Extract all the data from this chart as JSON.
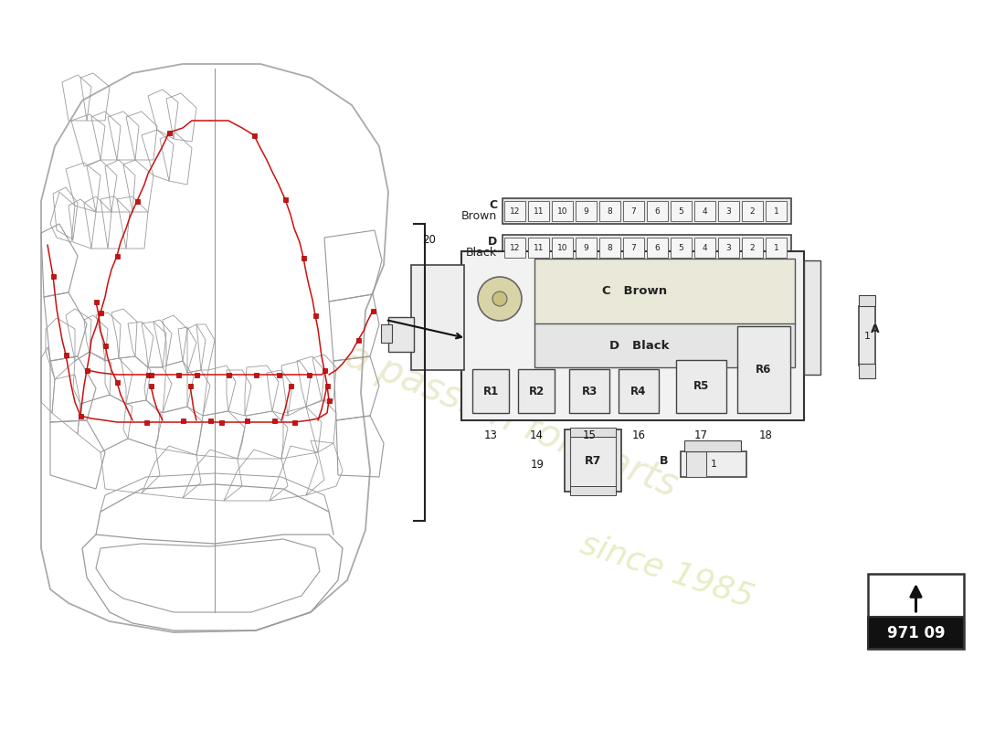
{
  "bg_color": "#ffffff",
  "car_outline_color": "#aaaaaa",
  "car_inner_color": "#999999",
  "wiring_color": "#cc1111",
  "diagram_line_color": "#333333",
  "fuse_slot_fill": "#f5f5f5",
  "fuse_outer_fill": "#e8e8e8",
  "relay_fill": "#eeeeee",
  "page_code": "971 09",
  "row_C_label1": "C",
  "row_C_label2": "Brown",
  "row_D_label1": "D",
  "row_D_label2": "Black",
  "num_fuses": 12,
  "relay_labels": [
    "R1",
    "R2",
    "R3",
    "R4",
    "R5",
    "R6"
  ],
  "relay7_label": "R7",
  "callout_20": "20",
  "callout_13": "13",
  "callout_14": "14",
  "callout_15": "15",
  "callout_16": "16",
  "callout_17": "17",
  "callout_18": "18",
  "callout_19": "19",
  "C_brown_text": "C   Brown",
  "D_black_text": "D   Black",
  "label_A": "A",
  "label_B": "B",
  "watermark1": "a passion for parts",
  "watermark2": "since 1985",
  "wm_color": "#e8e8c8",
  "wm_color2": "#e0e8b0"
}
